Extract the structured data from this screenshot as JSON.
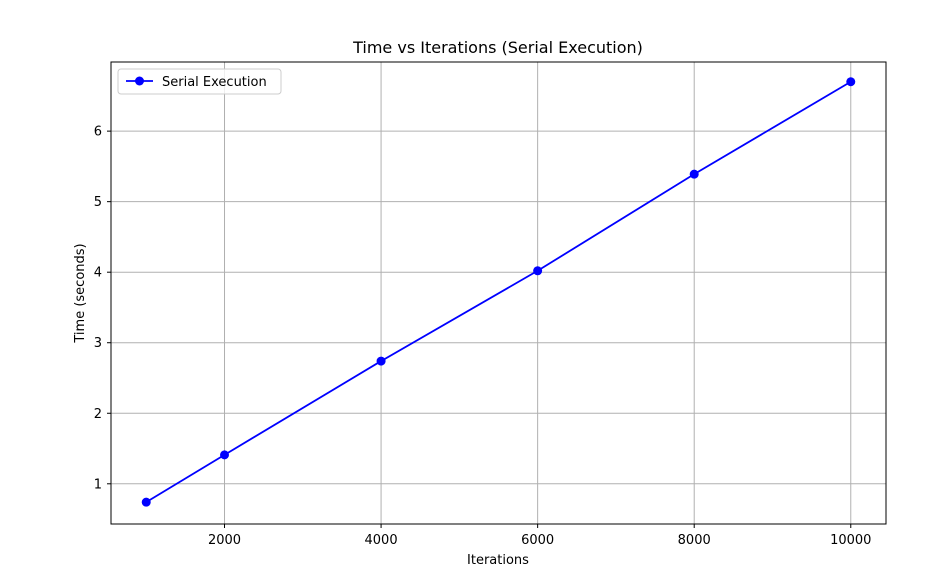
{
  "chart_data": {
    "type": "line",
    "title": "Time vs Iterations (Serial Execution)",
    "xlabel": "Iterations",
    "ylabel": "Time (seconds)",
    "xlim": [
      550,
      10450
    ],
    "ylim": [
      0.43,
      6.98
    ],
    "x_ticks": [
      2000,
      4000,
      6000,
      8000,
      10000
    ],
    "y_ticks": [
      1,
      2,
      3,
      4,
      5,
      6
    ],
    "grid": true,
    "legend_position": "top-left",
    "series": [
      {
        "name": "Serial Execution",
        "color": "#0000ff",
        "marker": "circle",
        "x": [
          1000,
          2000,
          4000,
          6000,
          8000,
          10000
        ],
        "y": [
          0.74,
          1.41,
          2.74,
          4.02,
          5.39,
          6.7
        ]
      }
    ]
  }
}
